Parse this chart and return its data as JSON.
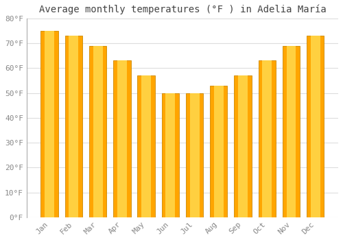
{
  "title": "Average monthly temperatures (°F ) in Adelia María",
  "months": [
    "Jan",
    "Feb",
    "Mar",
    "Apr",
    "May",
    "Jun",
    "Jul",
    "Aug",
    "Sep",
    "Oct",
    "Nov",
    "Dec"
  ],
  "values": [
    75,
    73,
    69,
    63,
    57,
    50,
    50,
    53,
    57,
    63,
    69,
    73
  ],
  "bar_color_center": "#FFD040",
  "bar_color_edge": "#FFA500",
  "background_color": "#FFFFFF",
  "grid_color": "#DDDDDD",
  "ylim": [
    0,
    80
  ],
  "yticks": [
    0,
    10,
    20,
    30,
    40,
    50,
    60,
    70,
    80
  ],
  "ytick_labels": [
    "0°F",
    "10°F",
    "20°F",
    "30°F",
    "40°F",
    "50°F",
    "60°F",
    "70°F",
    "80°F"
  ],
  "title_fontsize": 10,
  "tick_fontsize": 8,
  "tick_color": "#888888",
  "font_family": "monospace",
  "figsize": [
    5.0,
    3.5
  ],
  "dpi": 100
}
